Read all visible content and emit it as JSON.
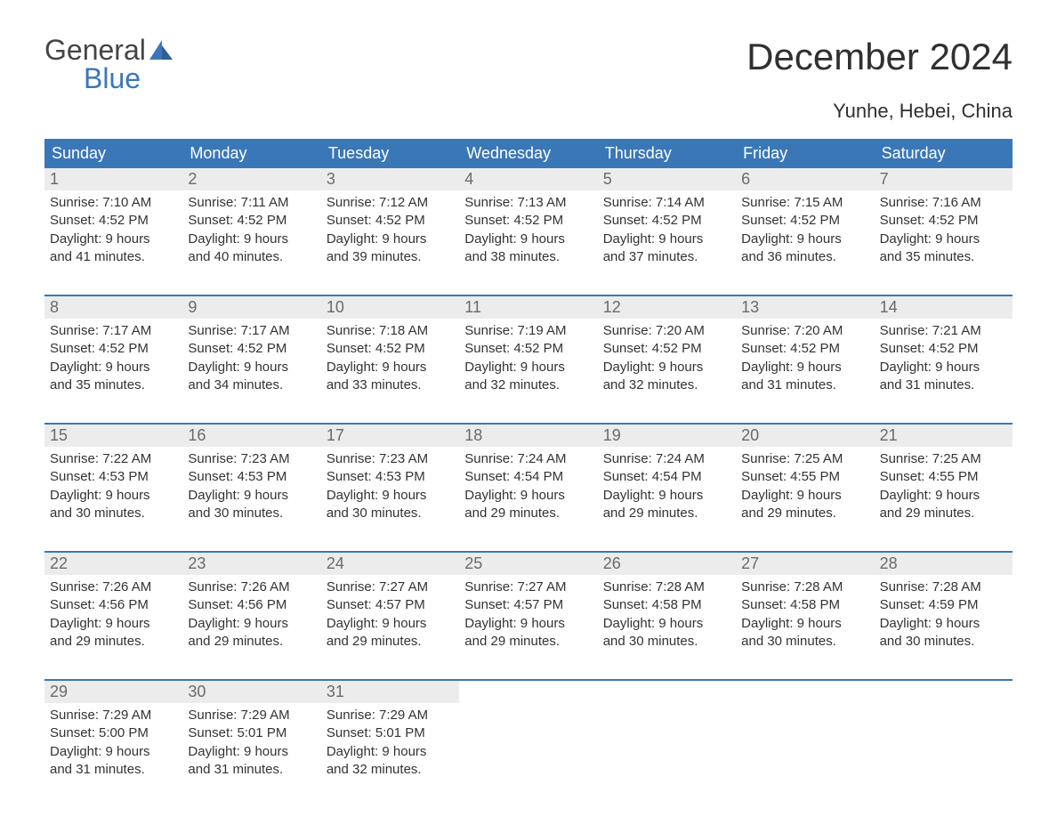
{
  "logo": {
    "word1": "General",
    "word2": "Blue"
  },
  "title": "December 2024",
  "subtitle": "Yunhe, Hebei, China",
  "colors": {
    "header_bg": "#3a77b7",
    "header_text": "#ffffff",
    "daynum_bg": "#ececec",
    "daynum_text": "#6a6a6a",
    "body_text": "#333333",
    "logo_gray": "#444444",
    "logo_blue": "#3a77b7"
  },
  "day_names": [
    "Sunday",
    "Monday",
    "Tuesday",
    "Wednesday",
    "Thursday",
    "Friday",
    "Saturday"
  ],
  "weeks": [
    [
      {
        "d": "1",
        "sr": "Sunrise: 7:10 AM",
        "ss": "Sunset: 4:52 PM",
        "dl1": "Daylight: 9 hours",
        "dl2": "and 41 minutes."
      },
      {
        "d": "2",
        "sr": "Sunrise: 7:11 AM",
        "ss": "Sunset: 4:52 PM",
        "dl1": "Daylight: 9 hours",
        "dl2": "and 40 minutes."
      },
      {
        "d": "3",
        "sr": "Sunrise: 7:12 AM",
        "ss": "Sunset: 4:52 PM",
        "dl1": "Daylight: 9 hours",
        "dl2": "and 39 minutes."
      },
      {
        "d": "4",
        "sr": "Sunrise: 7:13 AM",
        "ss": "Sunset: 4:52 PM",
        "dl1": "Daylight: 9 hours",
        "dl2": "and 38 minutes."
      },
      {
        "d": "5",
        "sr": "Sunrise: 7:14 AM",
        "ss": "Sunset: 4:52 PM",
        "dl1": "Daylight: 9 hours",
        "dl2": "and 37 minutes."
      },
      {
        "d": "6",
        "sr": "Sunrise: 7:15 AM",
        "ss": "Sunset: 4:52 PM",
        "dl1": "Daylight: 9 hours",
        "dl2": "and 36 minutes."
      },
      {
        "d": "7",
        "sr": "Sunrise: 7:16 AM",
        "ss": "Sunset: 4:52 PM",
        "dl1": "Daylight: 9 hours",
        "dl2": "and 35 minutes."
      }
    ],
    [
      {
        "d": "8",
        "sr": "Sunrise: 7:17 AM",
        "ss": "Sunset: 4:52 PM",
        "dl1": "Daylight: 9 hours",
        "dl2": "and 35 minutes."
      },
      {
        "d": "9",
        "sr": "Sunrise: 7:17 AM",
        "ss": "Sunset: 4:52 PM",
        "dl1": "Daylight: 9 hours",
        "dl2": "and 34 minutes."
      },
      {
        "d": "10",
        "sr": "Sunrise: 7:18 AM",
        "ss": "Sunset: 4:52 PM",
        "dl1": "Daylight: 9 hours",
        "dl2": "and 33 minutes."
      },
      {
        "d": "11",
        "sr": "Sunrise: 7:19 AM",
        "ss": "Sunset: 4:52 PM",
        "dl1": "Daylight: 9 hours",
        "dl2": "and 32 minutes."
      },
      {
        "d": "12",
        "sr": "Sunrise: 7:20 AM",
        "ss": "Sunset: 4:52 PM",
        "dl1": "Daylight: 9 hours",
        "dl2": "and 32 minutes."
      },
      {
        "d": "13",
        "sr": "Sunrise: 7:20 AM",
        "ss": "Sunset: 4:52 PM",
        "dl1": "Daylight: 9 hours",
        "dl2": "and 31 minutes."
      },
      {
        "d": "14",
        "sr": "Sunrise: 7:21 AM",
        "ss": "Sunset: 4:52 PM",
        "dl1": "Daylight: 9 hours",
        "dl2": "and 31 minutes."
      }
    ],
    [
      {
        "d": "15",
        "sr": "Sunrise: 7:22 AM",
        "ss": "Sunset: 4:53 PM",
        "dl1": "Daylight: 9 hours",
        "dl2": "and 30 minutes."
      },
      {
        "d": "16",
        "sr": "Sunrise: 7:23 AM",
        "ss": "Sunset: 4:53 PM",
        "dl1": "Daylight: 9 hours",
        "dl2": "and 30 minutes."
      },
      {
        "d": "17",
        "sr": "Sunrise: 7:23 AM",
        "ss": "Sunset: 4:53 PM",
        "dl1": "Daylight: 9 hours",
        "dl2": "and 30 minutes."
      },
      {
        "d": "18",
        "sr": "Sunrise: 7:24 AM",
        "ss": "Sunset: 4:54 PM",
        "dl1": "Daylight: 9 hours",
        "dl2": "and 29 minutes."
      },
      {
        "d": "19",
        "sr": "Sunrise: 7:24 AM",
        "ss": "Sunset: 4:54 PM",
        "dl1": "Daylight: 9 hours",
        "dl2": "and 29 minutes."
      },
      {
        "d": "20",
        "sr": "Sunrise: 7:25 AM",
        "ss": "Sunset: 4:55 PM",
        "dl1": "Daylight: 9 hours",
        "dl2": "and 29 minutes."
      },
      {
        "d": "21",
        "sr": "Sunrise: 7:25 AM",
        "ss": "Sunset: 4:55 PM",
        "dl1": "Daylight: 9 hours",
        "dl2": "and 29 minutes."
      }
    ],
    [
      {
        "d": "22",
        "sr": "Sunrise: 7:26 AM",
        "ss": "Sunset: 4:56 PM",
        "dl1": "Daylight: 9 hours",
        "dl2": "and 29 minutes."
      },
      {
        "d": "23",
        "sr": "Sunrise: 7:26 AM",
        "ss": "Sunset: 4:56 PM",
        "dl1": "Daylight: 9 hours",
        "dl2": "and 29 minutes."
      },
      {
        "d": "24",
        "sr": "Sunrise: 7:27 AM",
        "ss": "Sunset: 4:57 PM",
        "dl1": "Daylight: 9 hours",
        "dl2": "and 29 minutes."
      },
      {
        "d": "25",
        "sr": "Sunrise: 7:27 AM",
        "ss": "Sunset: 4:57 PM",
        "dl1": "Daylight: 9 hours",
        "dl2": "and 29 minutes."
      },
      {
        "d": "26",
        "sr": "Sunrise: 7:28 AM",
        "ss": "Sunset: 4:58 PM",
        "dl1": "Daylight: 9 hours",
        "dl2": "and 30 minutes."
      },
      {
        "d": "27",
        "sr": "Sunrise: 7:28 AM",
        "ss": "Sunset: 4:58 PM",
        "dl1": "Daylight: 9 hours",
        "dl2": "and 30 minutes."
      },
      {
        "d": "28",
        "sr": "Sunrise: 7:28 AM",
        "ss": "Sunset: 4:59 PM",
        "dl1": "Daylight: 9 hours",
        "dl2": "and 30 minutes."
      }
    ],
    [
      {
        "d": "29",
        "sr": "Sunrise: 7:29 AM",
        "ss": "Sunset: 5:00 PM",
        "dl1": "Daylight: 9 hours",
        "dl2": "and 31 minutes."
      },
      {
        "d": "30",
        "sr": "Sunrise: 7:29 AM",
        "ss": "Sunset: 5:01 PM",
        "dl1": "Daylight: 9 hours",
        "dl2": "and 31 minutes."
      },
      {
        "d": "31",
        "sr": "Sunrise: 7:29 AM",
        "ss": "Sunset: 5:01 PM",
        "dl1": "Daylight: 9 hours",
        "dl2": "and 32 minutes."
      },
      null,
      null,
      null,
      null
    ]
  ]
}
